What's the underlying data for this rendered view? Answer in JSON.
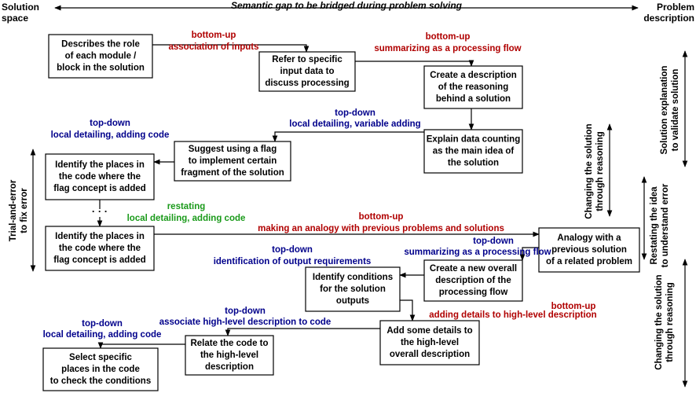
{
  "header": {
    "title": "Semantic gap to be bridged during problem solving",
    "left": [
      "Solution",
      "space"
    ],
    "right": [
      "Problem",
      "description"
    ]
  },
  "nodes": [
    {
      "lines": [
        "Describes the role",
        "of each module /",
        "block in the solution"
      ]
    },
    {
      "lines": [
        "Refer to specific",
        "input data to",
        "discuss processing"
      ]
    },
    {
      "lines": [
        "Create a description",
        "of the reasoning",
        "behind a solution"
      ]
    },
    {
      "lines": [
        "Explain data counting",
        "as the main idea of",
        "the solution"
      ]
    },
    {
      "lines": [
        "Suggest using a flag",
        "to implement certain",
        "fragment of the solution"
      ]
    },
    {
      "lines": [
        "Identify the places in",
        "the code where the",
        "flag concept is added"
      ]
    },
    {
      "lines": [
        "Identify the places in",
        "the code where the",
        "flag concept is added"
      ]
    },
    {
      "lines": [
        "Analogy with a",
        "previous solution",
        "of a related problem"
      ]
    },
    {
      "lines": [
        "Create a new overall",
        "description of the",
        "processing flow"
      ]
    },
    {
      "lines": [
        "Identify conditions",
        "for the solution",
        "outputs"
      ]
    },
    {
      "lines": [
        "Add some details to",
        "the high-level",
        "overall description"
      ]
    },
    {
      "lines": [
        "Relate the code to",
        "the high-level",
        "description"
      ]
    },
    {
      "lines": [
        "Select specific",
        "places in the code",
        "to check the conditions"
      ]
    }
  ],
  "edge_labels": [
    {
      "direction": "bottom-up",
      "text": "association of inputs"
    },
    {
      "direction": "bottom-up",
      "text": "summarizing as a processing flow"
    },
    {
      "direction": "top-down",
      "text": "local detailing, variable adding"
    },
    {
      "direction": "top-down",
      "text": "local detailing, adding code"
    },
    {
      "direction": "restating",
      "text": "local detailing, adding code"
    },
    {
      "direction": "bottom-up",
      "text": "making an analogy with previous problems and solutions"
    },
    {
      "direction": "top-down",
      "text": "summarizing as a processing flow"
    },
    {
      "direction": "top-down",
      "text": "identification of output requirements"
    },
    {
      "direction": "bottom-up",
      "text": "adding details to high-level description"
    },
    {
      "direction": "top-down",
      "text": "associate high-level description to code"
    },
    {
      "direction": "top-down",
      "text": "local detailing, adding code"
    }
  ],
  "side_labels": [
    {
      "lines": [
        "Trial-and-error",
        "to fix error"
      ]
    },
    {
      "lines": [
        "Solution explanation",
        "to validate solution"
      ]
    },
    {
      "lines": [
        "Changing the solution",
        "through reasoning"
      ]
    },
    {
      "lines": [
        "Restating the idea",
        "to understand error"
      ]
    },
    {
      "lines": [
        "Changing the solution",
        "through reasoning"
      ]
    }
  ]
}
